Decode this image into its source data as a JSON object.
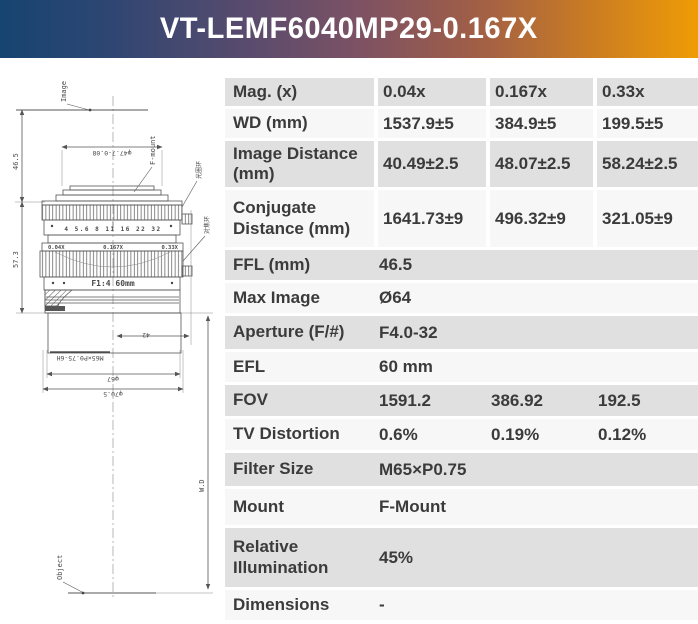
{
  "header": {
    "title": "VT-LEMF6040MP29-0.167X",
    "gradient_left": "#174471",
    "gradient_right": "#ef9c05",
    "text_color": "#ffffff"
  },
  "colors": {
    "row_dark": "#e0e0e0",
    "row_light": "#f7f7f7",
    "table_text": "#3b3b3b"
  },
  "table": {
    "rows": [
      {
        "label": "Mag. (x)",
        "mode": "split",
        "shade": "dark",
        "values": [
          "0.04x",
          "0.167x",
          "0.33x"
        ]
      },
      {
        "label": "WD (mm)",
        "mode": "split",
        "shade": "light",
        "values": [
          "1537.9±5",
          "384.9±5",
          "199.5±5"
        ]
      },
      {
        "label": "Image Distance (mm)",
        "mode": "split",
        "shade": "dark",
        "values": [
          "40.49±2.5",
          "48.07±2.5",
          "58.24±2.5"
        ]
      },
      {
        "label": "Conjugate Distance (mm)",
        "mode": "split",
        "shade": "light",
        "values": [
          "1641.73±9",
          "496.32±9",
          "321.05±9"
        ]
      },
      {
        "label": "FFL (mm)",
        "mode": "span",
        "shade": "dark",
        "values": [
          "46.5"
        ]
      },
      {
        "label": "Max Image",
        "mode": "span",
        "shade": "light",
        "values": [
          "Ø64"
        ]
      },
      {
        "label": "Aperture (F/#)",
        "mode": "span",
        "shade": "dark",
        "values": [
          "F4.0-32"
        ]
      },
      {
        "label": "EFL",
        "mode": "span",
        "shade": "light",
        "values": [
          "60 mm"
        ]
      },
      {
        "label": "FOV",
        "mode": "multi",
        "shade": "dark",
        "values": [
          "1591.2",
          "386.92",
          "192.5"
        ]
      },
      {
        "label": "TV Distortion",
        "mode": "multi",
        "shade": "light",
        "values": [
          "0.6%",
          "0.19%",
          "0.12%"
        ]
      },
      {
        "label": "Filter Size",
        "mode": "span",
        "shade": "dark",
        "values": [
          "M65×P0.75"
        ]
      },
      {
        "label": "Mount",
        "mode": "span",
        "shade": "light",
        "values": [
          "F-Mount"
        ]
      },
      {
        "label": "Relative Illumination",
        "mode": "span",
        "shade": "dark",
        "values": [
          "45%"
        ]
      },
      {
        "label": "Dimensions",
        "mode": "span",
        "shade": "light",
        "values": [
          "-"
        ]
      }
    ]
  },
  "diagram": {
    "image_label": "Image",
    "object_label": "Object",
    "fmount_label": "F-mount",
    "aperture_ring_label": "光圈环",
    "focus_ring_label": "对焦环",
    "ffl_dim": "46.5",
    "body_dim": "57.3",
    "mount_dia_dim": "φ47.7-0.08",
    "front_dim": "42",
    "thread_dim": "M65×P0.75-6H",
    "dia1_dim": "φ67",
    "dia2_dim": "φ70.5",
    "wd_label": "W.D",
    "aperture_scale": "4  5.6  8  11  16  22  32",
    "mag_scale": [
      "0.04X",
      "0.167X",
      "0.33X"
    ],
    "lens_marking": "F1:4 60mm"
  }
}
